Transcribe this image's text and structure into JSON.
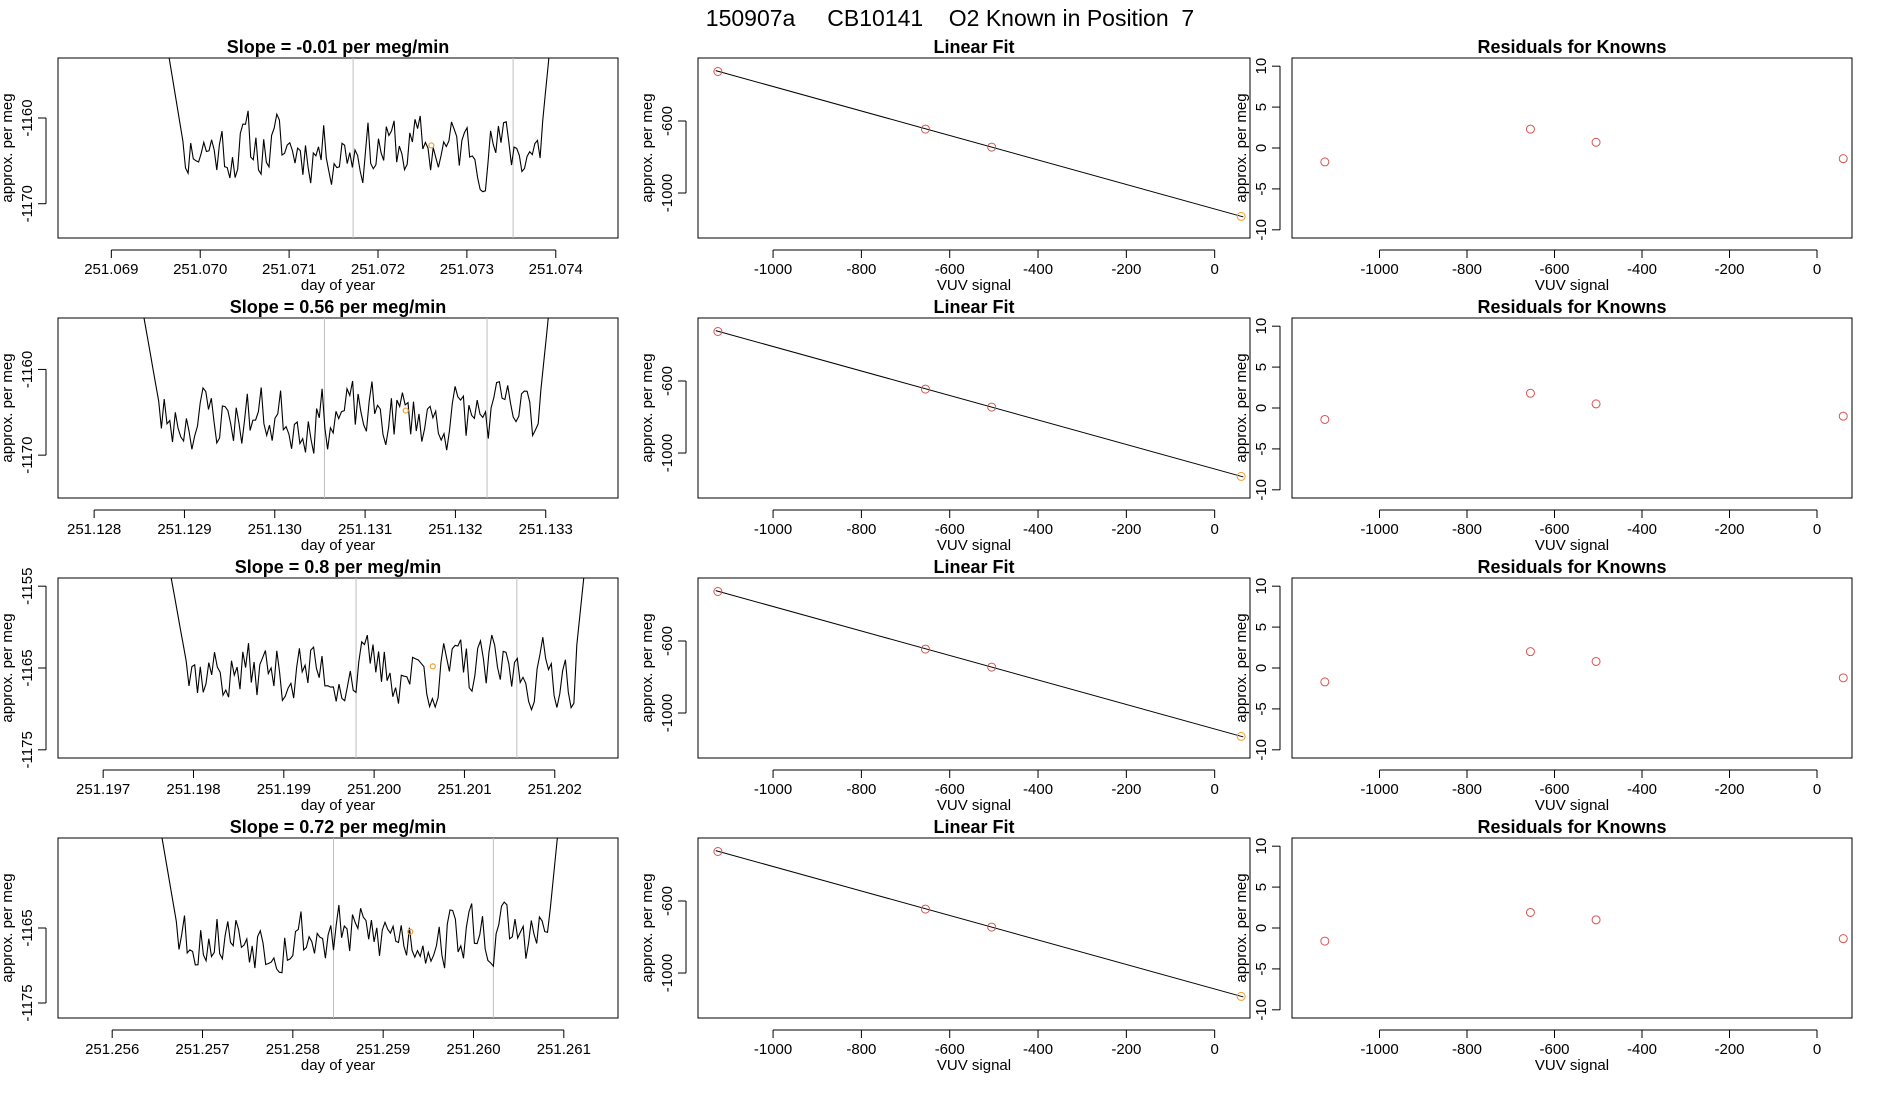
{
  "figure_title": "150907a     CB10141    O2 Known in Position  7",
  "colors": {
    "trace": "#000000",
    "vline": "#bebebe",
    "point": "#d9534f",
    "highlight": "#f0a030",
    "fitline": "#000000",
    "axis": "#000000"
  },
  "chart_data": [
    {
      "type": "line",
      "title": "Slope =  -0.01  per meg/min",
      "xlabel": "day of year",
      "ylabel": "approx. per meg",
      "xlim": [
        251.0684,
        251.0747
      ],
      "ylim": [
        -1174,
        -1153
      ],
      "xticks": [
        "251.069",
        "251.070",
        "251.071",
        "251.072",
        "251.073",
        "251.074"
      ],
      "yticks": [
        "-1160",
        "-1170"
      ],
      "vlines": [
        251.07172,
        251.07352
      ],
      "start_x": 251.0696,
      "end_x": 251.074,
      "seed": 11,
      "level": -1163.5,
      "highlight_x": 251.0726,
      "highlight_y": -1163.2
    },
    {
      "type": "scatter",
      "title": "Linear Fit",
      "xlabel": "VUV signal",
      "ylabel": "approx. per meg",
      "xlim": [
        -1170,
        80
      ],
      "ylim": [
        -1250,
        -250
      ],
      "xticks": [
        "-1000",
        "-800",
        "-600",
        "-400",
        "-200",
        "0"
      ],
      "yticks": [
        "-600",
        "-1000"
      ],
      "points": [
        [
          -1125,
          -325
        ],
        [
          -655,
          -645
        ],
        [
          -505,
          -745
        ],
        [
          60,
          -1130
        ]
      ],
      "fit": [
        [
          -1130,
          -320
        ],
        [
          65,
          -1133
        ]
      ]
    },
    {
      "type": "scatter",
      "title": "Residuals for Knowns",
      "xlabel": "VUV signal",
      "ylabel": "approx. per meg",
      "xlim": [
        -1200,
        80
      ],
      "ylim": [
        -11,
        11
      ],
      "xticks": [
        "-1000",
        "-800",
        "-600",
        "-400",
        "-200",
        "0"
      ],
      "yticks": [
        "10",
        "5",
        "0",
        "-5",
        "-10"
      ],
      "points": [
        [
          -1125,
          -1.7
        ],
        [
          -655,
          2.3
        ],
        [
          -505,
          0.7
        ],
        [
          60,
          -1.3
        ]
      ]
    },
    {
      "type": "line",
      "title": "Slope =  0.56  per meg/min",
      "xlabel": "day of year",
      "ylabel": "approx. per meg",
      "xlim": [
        251.1276,
        251.1338
      ],
      "ylim": [
        -1175,
        -1154
      ],
      "xticks": [
        "251.128",
        "251.129",
        "251.130",
        "251.131",
        "251.132",
        "251.133"
      ],
      "yticks": [
        "-1160",
        "-1170"
      ],
      "vlines": [
        251.13055,
        251.13235
      ],
      "start_x": 251.1285,
      "end_x": 251.1331,
      "seed": 23,
      "level": -1165.5,
      "highlight_x": 251.13145,
      "highlight_y": -1164.8
    },
    {
      "type": "scatter",
      "title": "Linear Fit",
      "xlabel": "VUV signal",
      "ylabel": "approx. per meg",
      "xlim": [
        -1170,
        80
      ],
      "ylim": [
        -1250,
        -250
      ],
      "xticks": [
        "-1000",
        "-800",
        "-600",
        "-400",
        "-200",
        "0"
      ],
      "yticks": [
        "-600",
        "-1000"
      ],
      "points": [
        [
          -1125,
          -325
        ],
        [
          -655,
          -645
        ],
        [
          -505,
          -745
        ],
        [
          60,
          -1130
        ]
      ],
      "fit": [
        [
          -1130,
          -320
        ],
        [
          65,
          -1133
        ]
      ]
    },
    {
      "type": "scatter",
      "title": "Residuals for Knowns",
      "xlabel": "VUV signal",
      "ylabel": "approx. per meg",
      "xlim": [
        -1200,
        80
      ],
      "ylim": [
        -11,
        11
      ],
      "xticks": [
        "-1000",
        "-800",
        "-600",
        "-400",
        "-200",
        "0"
      ],
      "yticks": [
        "10",
        "5",
        "0",
        "-5",
        "-10"
      ],
      "points": [
        [
          -1125,
          -1.4
        ],
        [
          -655,
          1.8
        ],
        [
          -505,
          0.5
        ],
        [
          60,
          -1.0
        ]
      ]
    },
    {
      "type": "line",
      "title": "Slope =  0.8  per meg/min",
      "xlabel": "day of year",
      "ylabel": "approx. per meg",
      "xlim": [
        251.1965,
        251.2027
      ],
      "ylim": [
        -1176,
        -1154
      ],
      "xticks": [
        "251.197",
        "251.198",
        "251.199",
        "251.200",
        "251.201",
        "251.202"
      ],
      "yticks": [
        "-1155",
        "-1165",
        "-1175"
      ],
      "vlines": [
        251.1998,
        251.20158
      ],
      "start_x": 251.1977,
      "end_x": 251.2024,
      "seed": 37,
      "level": -1165.5,
      "highlight_x": 251.20065,
      "highlight_y": -1164.8
    },
    {
      "type": "scatter",
      "title": "Linear Fit",
      "xlabel": "VUV signal",
      "ylabel": "approx. per meg",
      "xlim": [
        -1170,
        80
      ],
      "ylim": [
        -1250,
        -250
      ],
      "xticks": [
        "-1000",
        "-800",
        "-600",
        "-400",
        "-200",
        "0"
      ],
      "yticks": [
        "-600",
        "-1000"
      ],
      "points": [
        [
          -1125,
          -325
        ],
        [
          -655,
          -645
        ],
        [
          -505,
          -745
        ],
        [
          60,
          -1130
        ]
      ],
      "fit": [
        [
          -1130,
          -320
        ],
        [
          65,
          -1133
        ]
      ]
    },
    {
      "type": "scatter",
      "title": "Residuals for Knowns",
      "xlabel": "VUV signal",
      "ylabel": "approx. per meg",
      "xlim": [
        -1200,
        80
      ],
      "ylim": [
        -11,
        11
      ],
      "xticks": [
        "-1000",
        "-800",
        "-600",
        "-400",
        "-200",
        "0"
      ],
      "yticks": [
        "10",
        "5",
        "0",
        "-5",
        "-10"
      ],
      "points": [
        [
          -1125,
          -1.7
        ],
        [
          -655,
          2.0
        ],
        [
          -505,
          0.8
        ],
        [
          60,
          -1.2
        ]
      ]
    },
    {
      "type": "line",
      "title": "Slope =  0.72  per meg/min",
      "xlabel": "day of year",
      "ylabel": "approx. per meg",
      "xlim": [
        251.2554,
        251.2616
      ],
      "ylim": [
        -1177,
        -1153
      ],
      "xticks": [
        "251.256",
        "251.257",
        "251.258",
        "251.259",
        "251.260",
        "251.261"
      ],
      "yticks": [
        "-1165",
        "-1175"
      ],
      "vlines": [
        251.25845,
        251.26022
      ],
      "start_x": 251.2565,
      "end_x": 251.261,
      "seed": 53,
      "level": -1166,
      "highlight_x": 251.2593,
      "highlight_y": -1165.5
    },
    {
      "type": "scatter",
      "title": "Linear Fit",
      "xlabel": "VUV signal",
      "ylabel": "approx. per meg",
      "xlim": [
        -1170,
        80
      ],
      "ylim": [
        -1250,
        -250
      ],
      "xticks": [
        "-1000",
        "-800",
        "-600",
        "-400",
        "-200",
        "0"
      ],
      "yticks": [
        "-600",
        "-1000"
      ],
      "points": [
        [
          -1125,
          -325
        ],
        [
          -655,
          -645
        ],
        [
          -505,
          -745
        ],
        [
          60,
          -1130
        ]
      ],
      "fit": [
        [
          -1130,
          -320
        ],
        [
          65,
          -1133
        ]
      ]
    },
    {
      "type": "scatter",
      "title": "Residuals for Knowns",
      "xlabel": "VUV signal",
      "ylabel": "approx. per meg",
      "xlim": [
        -1200,
        80
      ],
      "ylim": [
        -11,
        11
      ],
      "xticks": [
        "-1000",
        "-800",
        "-600",
        "-400",
        "-200",
        "0"
      ],
      "yticks": [
        "10",
        "5",
        "0",
        "-5",
        "-10"
      ],
      "points": [
        [
          -1125,
          -1.6
        ],
        [
          -655,
          1.9
        ],
        [
          -505,
          1.0
        ],
        [
          60,
          -1.3
        ]
      ]
    }
  ]
}
